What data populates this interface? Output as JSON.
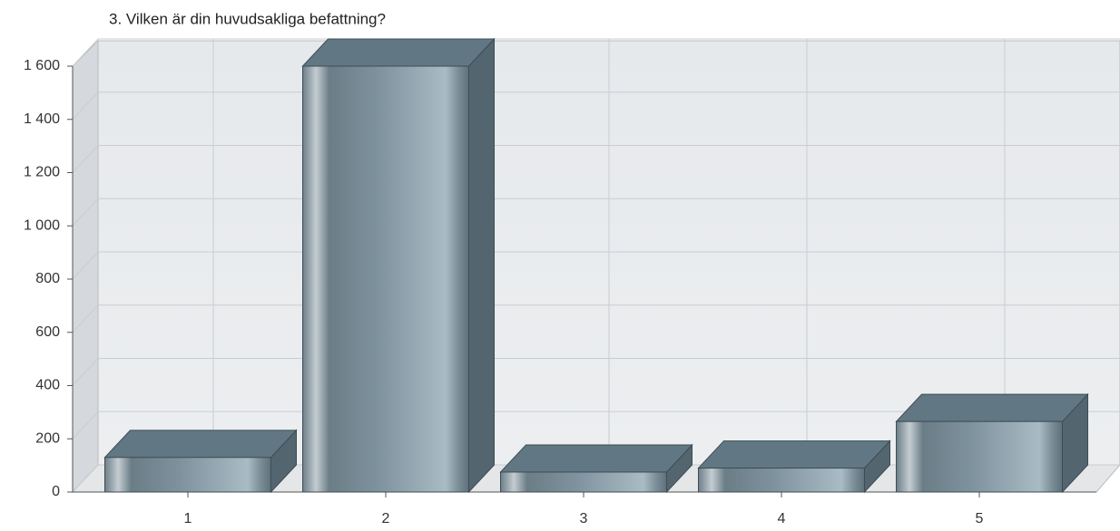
{
  "chart_data": {
    "type": "bar3d",
    "title": "3. Vilken är din huvudsakliga befattning?",
    "categories": [
      "1",
      "2",
      "3",
      "4",
      "5"
    ],
    "values": [
      130,
      1600,
      75,
      90,
      265
    ],
    "color": "#8fa3ae",
    "ylim": [
      0,
      1600
    ],
    "yticks": [
      0,
      200,
      400,
      600,
      800,
      {
        "value": 1000,
        "label": "1 000"
      },
      {
        "value": 1200,
        "label": "1 200"
      },
      {
        "value": 1400,
        "label": "1 400"
      },
      {
        "value": 1600,
        "label": "1 600"
      }
    ],
    "grid": true
  }
}
